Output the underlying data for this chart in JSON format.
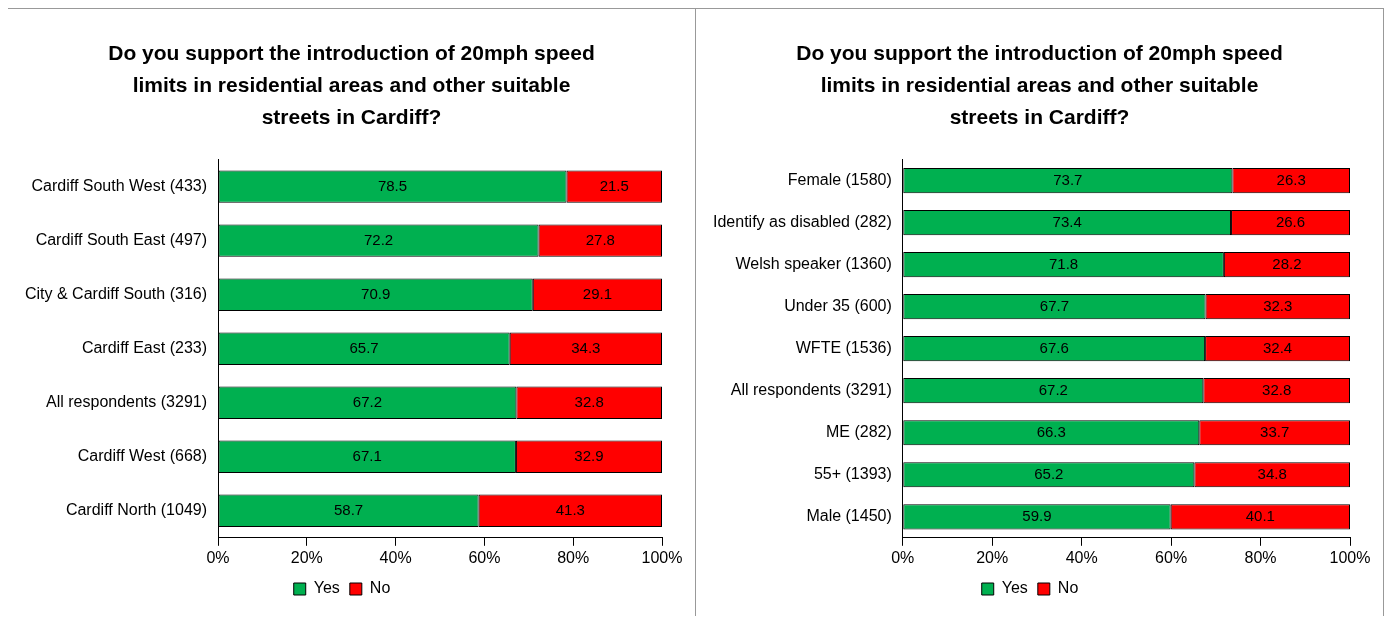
{
  "chart_data": [
    {
      "type": "bar",
      "orientation": "horizontal",
      "stacked": true,
      "title": "Do you support the introduction of 20mph speed limits in residential areas and other suitable streets in Cardiff?",
      "categories": [
        "Cardiff South West (433)",
        "Cardiff South East (497)",
        "City & Cardiff South (316)",
        "Cardiff East (233)",
        "All respondents (3291)",
        "Cardiff West (668)",
        "Cardiff North (1049)"
      ],
      "series": [
        {
          "name": "Yes",
          "color": "#00b050",
          "values": [
            78.5,
            72.2,
            70.9,
            65.7,
            67.2,
            67.1,
            58.7
          ]
        },
        {
          "name": "No",
          "color": "#ff0000",
          "values": [
            21.5,
            27.8,
            29.1,
            34.3,
            32.8,
            32.9,
            41.3
          ]
        }
      ],
      "xlim": [
        0,
        100
      ],
      "xticks": [
        {
          "value": 0,
          "label": "0%"
        },
        {
          "value": 20,
          "label": "20%"
        },
        {
          "value": 40,
          "label": "40%"
        },
        {
          "value": 60,
          "label": "60%"
        },
        {
          "value": 80,
          "label": "80%"
        },
        {
          "value": 100,
          "label": "100%"
        }
      ],
      "data_labels": true,
      "legend": "bottom"
    },
    {
      "type": "bar",
      "orientation": "horizontal",
      "stacked": true,
      "title": "Do you support the introduction of 20mph speed limits in residential areas and other suitable streets in Cardiff?",
      "categories": [
        "Female (1580)",
        "Identify as disabled (282)",
        "Welsh speaker (1360)",
        "Under 35 (600)",
        "WFTE (1536)",
        "All respondents (3291)",
        "ME (282)",
        "55+ (1393)",
        "Male (1450)"
      ],
      "series": [
        {
          "name": "Yes",
          "color": "#00b050",
          "values": [
            73.7,
            73.4,
            71.8,
            67.7,
            67.6,
            67.2,
            66.3,
            65.2,
            59.9
          ]
        },
        {
          "name": "No",
          "color": "#ff0000",
          "values": [
            26.3,
            26.6,
            28.2,
            32.3,
            32.4,
            32.8,
            33.7,
            34.8,
            40.1
          ]
        }
      ],
      "xlim": [
        0,
        100
      ],
      "xticks": [
        {
          "value": 0,
          "label": "0%"
        },
        {
          "value": 20,
          "label": "20%"
        },
        {
          "value": 40,
          "label": "40%"
        },
        {
          "value": 60,
          "label": "60%"
        },
        {
          "value": 80,
          "label": "80%"
        },
        {
          "value": 100,
          "label": "100%"
        }
      ],
      "data_labels": true,
      "legend": "bottom"
    }
  ]
}
